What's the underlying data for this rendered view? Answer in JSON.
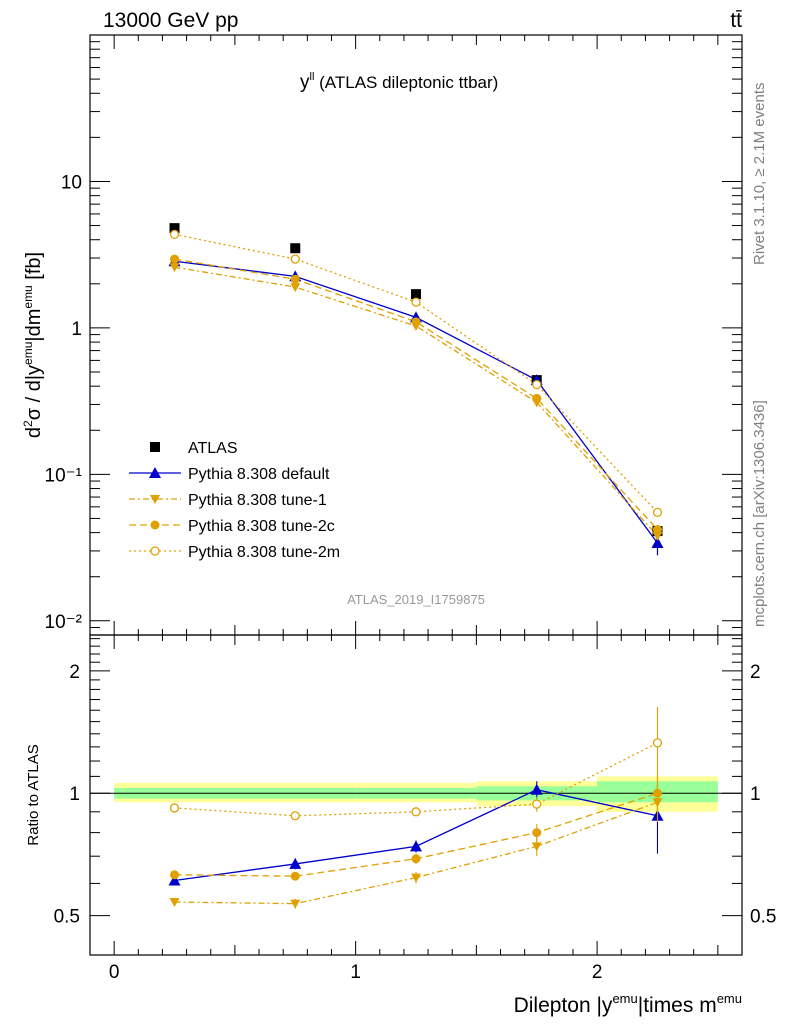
{
  "header": {
    "energy_label": "13000 GeV pp",
    "process_label": "tt̄"
  },
  "side": {
    "rivet_label": "Rivet 3.1.10, ≥ 2.1M events",
    "source_label": "mcplots.cern.ch [arXiv:1306.3436]"
  },
  "colors": {
    "atlas": "#000000",
    "default": "#0000cc",
    "tune": "#e0a000",
    "band_inner": "#99ff99",
    "band_outer": "#ffff99"
  },
  "chart_data": {
    "type": "line",
    "title_main": "y",
    "title_sup": "ll",
    "title_rest": " (ATLAS dileptonic ttbar)",
    "analysis_id": "ATLAS_2019_I1759875",
    "xlabel": "Dilepton |y^emu|times m^emu",
    "xlabel_parts": {
      "a": "Dilepton |y",
      "b": "emu",
      "c": "|times m",
      "d": "emu"
    },
    "ylabel": "d²σ / d|y^emu|dm^emu [fb]",
    "ratio_ylabel": "Ratio to ATLAS",
    "xlim": [
      -0.1,
      2.6
    ],
    "ylim": [
      0.008,
      100
    ],
    "ratio_ylim": [
      0.4,
      2.45
    ],
    "yscale": "log",
    "x_ticks": [
      "0",
      "1",
      "2"
    ],
    "y_ticks": [
      "10⁻²",
      "10⁻¹",
      "1",
      "10"
    ],
    "ratio_ticks": [
      "0.5",
      "1",
      "2"
    ],
    "legend_position": "bottom-left",
    "bins": [
      0,
      1,
      1.5,
      2,
      2.5
    ],
    "x": [
      0.25,
      0.75,
      1.25,
      1.75,
      2.25
    ],
    "series": [
      {
        "name": "ATLAS",
        "style": "data",
        "values": [
          4.8,
          3.5,
          1.7,
          0.44,
          0.041
        ],
        "errors": [
          0.2,
          0.15,
          0.08,
          0.02,
          0.004
        ],
        "ratio": [
          1,
          1,
          1,
          1,
          1
        ]
      },
      {
        "name": "Pythia 8.308 default",
        "style": "default",
        "values": [
          2.85,
          2.25,
          1.18,
          0.44,
          0.034
        ],
        "errors": [
          0.05,
          0.05,
          0.03,
          0.015,
          0.006
        ],
        "ratio": [
          0.61,
          0.67,
          0.74,
          1.02,
          0.88
        ],
        "ratio_err": [
          0.01,
          0.02,
          0.025,
          0.05,
          0.17
        ]
      },
      {
        "name": "Pythia 8.308 tune-1",
        "style": "tune1",
        "values": [
          2.6,
          1.9,
          1.03,
          0.31,
          0.038
        ],
        "errors": [
          0.05,
          0.04,
          0.03,
          0.01,
          0.004
        ],
        "ratio": [
          0.54,
          0.535,
          0.62,
          0.74,
          0.95
        ],
        "ratio_err": [
          0.01,
          0.015,
          0.02,
          0.04,
          0.1
        ]
      },
      {
        "name": "Pythia 8.308 tune-2c",
        "style": "tune2c",
        "values": [
          2.95,
          2.15,
          1.1,
          0.33,
          0.042
        ],
        "errors": [
          0.05,
          0.04,
          0.03,
          0.01,
          0.004
        ],
        "ratio": [
          0.63,
          0.625,
          0.69,
          0.8,
          1.0
        ],
        "ratio_err": [
          0.01,
          0.015,
          0.02,
          0.04,
          0.1
        ]
      },
      {
        "name": "Pythia 8.308 tune-2m",
        "style": "tune2m",
        "values": [
          4.35,
          2.95,
          1.5,
          0.41,
          0.055
        ],
        "errors": [
          0.05,
          0.05,
          0.03,
          0.012,
          0.005
        ],
        "ratio": [
          0.92,
          0.88,
          0.9,
          0.94,
          1.33
        ],
        "ratio_err": [
          0.01,
          0.015,
          0.02,
          0.04,
          0.3
        ]
      }
    ],
    "bands": {
      "inner_low": [
        0.97,
        0.97,
        0.96,
        0.95,
        0.84
      ],
      "inner_high": [
        1.03,
        1.03,
        1.04,
        1.07,
        1.15
      ],
      "outer_low": [
        0.95,
        0.95,
        0.93,
        0.9,
        0.66
      ],
      "outer_high": [
        1.06,
        1.06,
        1.07,
        1.1,
        1.3
      ]
    }
  }
}
